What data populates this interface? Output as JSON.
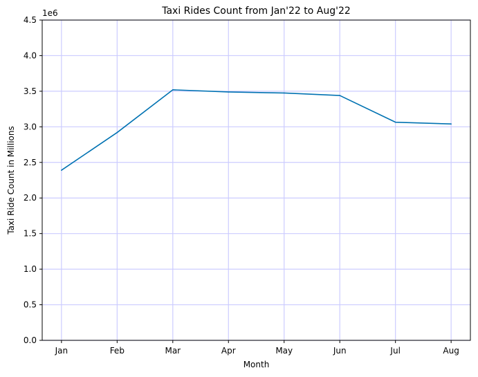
{
  "chart_data": {
    "type": "line",
    "title": "Taxi Rides Count from Jan'22 to Aug'22",
    "xlabel": "Month",
    "ylabel": "Taxi Ride Count in Millions",
    "y_offset_label": "1e6",
    "categories": [
      "Jan",
      "Feb",
      "Mar",
      "Apr",
      "May",
      "Jun",
      "Jul",
      "Aug"
    ],
    "series": [
      {
        "values": [
          2.39,
          2.92,
          3.52,
          3.49,
          3.475,
          3.44,
          3.065,
          3.04
        ],
        "color": "#0072b2"
      }
    ],
    "y_ticks": [
      "0.0",
      "0.5",
      "1.0",
      "1.5",
      "2.0",
      "2.5",
      "3.0",
      "3.5",
      "4.0",
      "4.5"
    ],
    "ylim": [
      0,
      4.5
    ],
    "grid": true,
    "grid_color": "#ccccff"
  }
}
